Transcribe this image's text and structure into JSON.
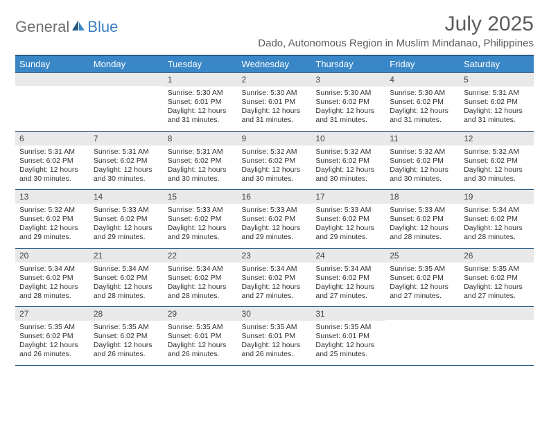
{
  "logo": {
    "text1": "General",
    "text2": "Blue",
    "text1_color": "#6e6e6e",
    "text2_color": "#3a7fc4"
  },
  "title": "July 2025",
  "location": "Dado, Autonomous Region in Muslim Mindanao, Philippines",
  "colors": {
    "header_bg": "#3a87c7",
    "header_text": "#ffffff",
    "rule": "#2a5a84",
    "daynum_bg": "#e9e9e9",
    "text": "#333333"
  },
  "day_headers": [
    "Sunday",
    "Monday",
    "Tuesday",
    "Wednesday",
    "Thursday",
    "Friday",
    "Saturday"
  ],
  "weeks": [
    [
      {
        "n": "",
        "sunrise": "",
        "sunset": "",
        "daylight": ""
      },
      {
        "n": "",
        "sunrise": "",
        "sunset": "",
        "daylight": ""
      },
      {
        "n": "1",
        "sunrise": "Sunrise: 5:30 AM",
        "sunset": "Sunset: 6:01 PM",
        "daylight": "Daylight: 12 hours and 31 minutes."
      },
      {
        "n": "2",
        "sunrise": "Sunrise: 5:30 AM",
        "sunset": "Sunset: 6:01 PM",
        "daylight": "Daylight: 12 hours and 31 minutes."
      },
      {
        "n": "3",
        "sunrise": "Sunrise: 5:30 AM",
        "sunset": "Sunset: 6:02 PM",
        "daylight": "Daylight: 12 hours and 31 minutes."
      },
      {
        "n": "4",
        "sunrise": "Sunrise: 5:30 AM",
        "sunset": "Sunset: 6:02 PM",
        "daylight": "Daylight: 12 hours and 31 minutes."
      },
      {
        "n": "5",
        "sunrise": "Sunrise: 5:31 AM",
        "sunset": "Sunset: 6:02 PM",
        "daylight": "Daylight: 12 hours and 31 minutes."
      }
    ],
    [
      {
        "n": "6",
        "sunrise": "Sunrise: 5:31 AM",
        "sunset": "Sunset: 6:02 PM",
        "daylight": "Daylight: 12 hours and 30 minutes."
      },
      {
        "n": "7",
        "sunrise": "Sunrise: 5:31 AM",
        "sunset": "Sunset: 6:02 PM",
        "daylight": "Daylight: 12 hours and 30 minutes."
      },
      {
        "n": "8",
        "sunrise": "Sunrise: 5:31 AM",
        "sunset": "Sunset: 6:02 PM",
        "daylight": "Daylight: 12 hours and 30 minutes."
      },
      {
        "n": "9",
        "sunrise": "Sunrise: 5:32 AM",
        "sunset": "Sunset: 6:02 PM",
        "daylight": "Daylight: 12 hours and 30 minutes."
      },
      {
        "n": "10",
        "sunrise": "Sunrise: 5:32 AM",
        "sunset": "Sunset: 6:02 PM",
        "daylight": "Daylight: 12 hours and 30 minutes."
      },
      {
        "n": "11",
        "sunrise": "Sunrise: 5:32 AM",
        "sunset": "Sunset: 6:02 PM",
        "daylight": "Daylight: 12 hours and 30 minutes."
      },
      {
        "n": "12",
        "sunrise": "Sunrise: 5:32 AM",
        "sunset": "Sunset: 6:02 PM",
        "daylight": "Daylight: 12 hours and 30 minutes."
      }
    ],
    [
      {
        "n": "13",
        "sunrise": "Sunrise: 5:32 AM",
        "sunset": "Sunset: 6:02 PM",
        "daylight": "Daylight: 12 hours and 29 minutes."
      },
      {
        "n": "14",
        "sunrise": "Sunrise: 5:33 AM",
        "sunset": "Sunset: 6:02 PM",
        "daylight": "Daylight: 12 hours and 29 minutes."
      },
      {
        "n": "15",
        "sunrise": "Sunrise: 5:33 AM",
        "sunset": "Sunset: 6:02 PM",
        "daylight": "Daylight: 12 hours and 29 minutes."
      },
      {
        "n": "16",
        "sunrise": "Sunrise: 5:33 AM",
        "sunset": "Sunset: 6:02 PM",
        "daylight": "Daylight: 12 hours and 29 minutes."
      },
      {
        "n": "17",
        "sunrise": "Sunrise: 5:33 AM",
        "sunset": "Sunset: 6:02 PM",
        "daylight": "Daylight: 12 hours and 29 minutes."
      },
      {
        "n": "18",
        "sunrise": "Sunrise: 5:33 AM",
        "sunset": "Sunset: 6:02 PM",
        "daylight": "Daylight: 12 hours and 28 minutes."
      },
      {
        "n": "19",
        "sunrise": "Sunrise: 5:34 AM",
        "sunset": "Sunset: 6:02 PM",
        "daylight": "Daylight: 12 hours and 28 minutes."
      }
    ],
    [
      {
        "n": "20",
        "sunrise": "Sunrise: 5:34 AM",
        "sunset": "Sunset: 6:02 PM",
        "daylight": "Daylight: 12 hours and 28 minutes."
      },
      {
        "n": "21",
        "sunrise": "Sunrise: 5:34 AM",
        "sunset": "Sunset: 6:02 PM",
        "daylight": "Daylight: 12 hours and 28 minutes."
      },
      {
        "n": "22",
        "sunrise": "Sunrise: 5:34 AM",
        "sunset": "Sunset: 6:02 PM",
        "daylight": "Daylight: 12 hours and 28 minutes."
      },
      {
        "n": "23",
        "sunrise": "Sunrise: 5:34 AM",
        "sunset": "Sunset: 6:02 PM",
        "daylight": "Daylight: 12 hours and 27 minutes."
      },
      {
        "n": "24",
        "sunrise": "Sunrise: 5:34 AM",
        "sunset": "Sunset: 6:02 PM",
        "daylight": "Daylight: 12 hours and 27 minutes."
      },
      {
        "n": "25",
        "sunrise": "Sunrise: 5:35 AM",
        "sunset": "Sunset: 6:02 PM",
        "daylight": "Daylight: 12 hours and 27 minutes."
      },
      {
        "n": "26",
        "sunrise": "Sunrise: 5:35 AM",
        "sunset": "Sunset: 6:02 PM",
        "daylight": "Daylight: 12 hours and 27 minutes."
      }
    ],
    [
      {
        "n": "27",
        "sunrise": "Sunrise: 5:35 AM",
        "sunset": "Sunset: 6:02 PM",
        "daylight": "Daylight: 12 hours and 26 minutes."
      },
      {
        "n": "28",
        "sunrise": "Sunrise: 5:35 AM",
        "sunset": "Sunset: 6:02 PM",
        "daylight": "Daylight: 12 hours and 26 minutes."
      },
      {
        "n": "29",
        "sunrise": "Sunrise: 5:35 AM",
        "sunset": "Sunset: 6:01 PM",
        "daylight": "Daylight: 12 hours and 26 minutes."
      },
      {
        "n": "30",
        "sunrise": "Sunrise: 5:35 AM",
        "sunset": "Sunset: 6:01 PM",
        "daylight": "Daylight: 12 hours and 26 minutes."
      },
      {
        "n": "31",
        "sunrise": "Sunrise: 5:35 AM",
        "sunset": "Sunset: 6:01 PM",
        "daylight": "Daylight: 12 hours and 25 minutes."
      },
      {
        "n": "",
        "sunrise": "",
        "sunset": "",
        "daylight": ""
      },
      {
        "n": "",
        "sunrise": "",
        "sunset": "",
        "daylight": ""
      }
    ]
  ]
}
